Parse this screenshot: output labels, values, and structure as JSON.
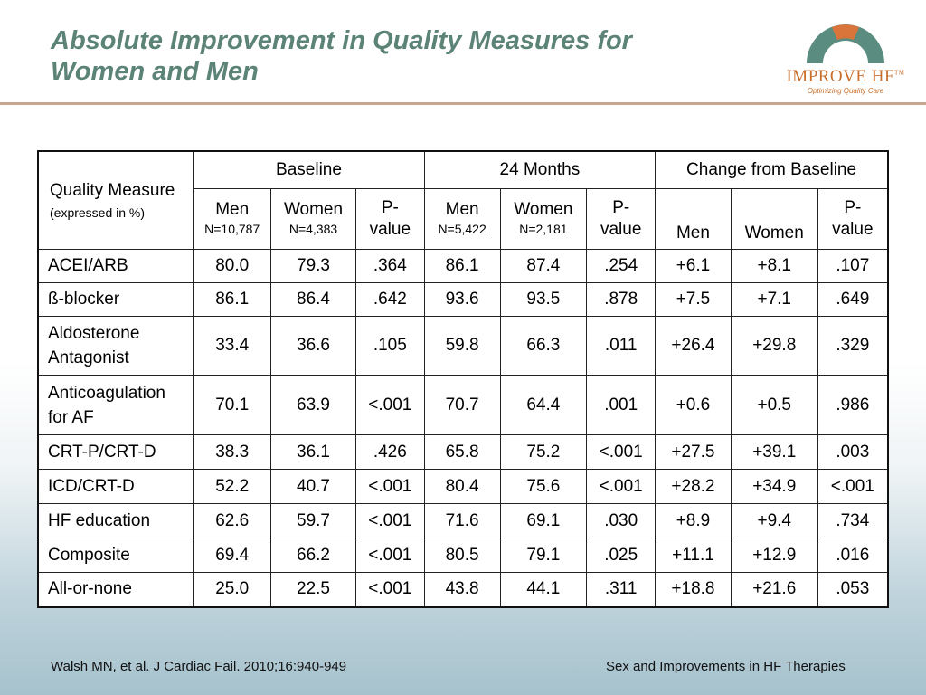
{
  "title": {
    "line1": "Absolute Improvement in Quality Measures for",
    "line2": "Women and Men"
  },
  "logo": {
    "name": "IMPROVE HF",
    "trademark": "TM",
    "tagline": "Optimizing Quality Care",
    "colors": {
      "arc": "#5b8c80",
      "cap": "#d9743a",
      "text": "#c9702e"
    }
  },
  "table": {
    "header": {
      "quality_measure": "Quality Measure",
      "expressed": "(expressed in %)",
      "baseline": "Baseline",
      "months24": "24 Months",
      "change": "Change from Baseline",
      "men": "Men",
      "women": "Women",
      "p_value_top": "P-",
      "p_value_bottom": "value",
      "baseline_men_n": "N=10,787",
      "baseline_women_n": "N=4,383",
      "m24_men_n": "N=5,422",
      "m24_women_n": "N=2,181"
    },
    "rows": [
      {
        "measure": "ACEI/ARB",
        "b_men": "80.0",
        "b_women": "79.3",
        "b_p": ".364",
        "m_men": "86.1",
        "m_women": "87.4",
        "m_p": ".254",
        "c_men": "+6.1",
        "c_women": "+8.1",
        "c_p": ".107"
      },
      {
        "measure": "ß-blocker",
        "b_men": "86.1",
        "b_women": "86.4",
        "b_p": ".642",
        "m_men": "93.6",
        "m_women": "93.5",
        "m_p": ".878",
        "c_men": "+7.5",
        "c_women": "+7.1",
        "c_p": ".649"
      },
      {
        "measure_line1": "Aldosterone",
        "measure_line2": "Antagonist",
        "b_men": "33.4",
        "b_women": "36.6",
        "b_p": ".105",
        "m_men": "59.8",
        "m_women": "66.3",
        "m_p": ".011",
        "c_men": "+26.4",
        "c_women": "+29.8",
        "c_p": ".329"
      },
      {
        "measure_line1": "Anticoagulation",
        "measure_line2": "for AF",
        "b_men": "70.1",
        "b_women": "63.9",
        "b_p": "<.001",
        "m_men": "70.7",
        "m_women": "64.4",
        "m_p": ".001",
        "c_men": "+0.6",
        "c_women": "+0.5",
        "c_p": ".986"
      },
      {
        "measure": "CRT-P/CRT-D",
        "b_men": "38.3",
        "b_women": "36.1",
        "b_p": ".426",
        "m_men": "65.8",
        "m_women": "75.2",
        "m_p": "<.001",
        "c_men": "+27.5",
        "c_women": "+39.1",
        "c_p": ".003"
      },
      {
        "measure": "ICD/CRT-D",
        "b_men": "52.2",
        "b_women": "40.7",
        "b_p": "<.001",
        "m_men": "80.4",
        "m_women": "75.6",
        "m_p": "<.001",
        "c_men": "+28.2",
        "c_women": "+34.9",
        "c_p": "<.001"
      },
      {
        "measure": "HF education",
        "b_men": "62.6",
        "b_women": "59.7",
        "b_p": "<.001",
        "m_men": "71.6",
        "m_women": "69.1",
        "m_p": ".030",
        "c_men": "+8.9",
        "c_women": "+9.4",
        "c_p": ".734"
      },
      {
        "measure": "Composite",
        "b_men": "69.4",
        "b_women": "66.2",
        "b_p": "<.001",
        "m_men": "80.5",
        "m_women": "79.1",
        "m_p": ".025",
        "c_men": "+11.1",
        "c_women": "+12.9",
        "c_p": ".016"
      },
      {
        "measure": "All-or-none",
        "b_men": "25.0",
        "b_women": "22.5",
        "b_p": "<.001",
        "m_men": "43.8",
        "m_women": "44.1",
        "m_p": ".311",
        "c_men": "+18.8",
        "c_women": "+21.6",
        "c_p": ".053"
      }
    ]
  },
  "footer": {
    "citation": "Walsh MN, et al. J Cardiac Fail. 2010;16:940-949",
    "topic": "Sex and Improvements in HF Therapies"
  }
}
